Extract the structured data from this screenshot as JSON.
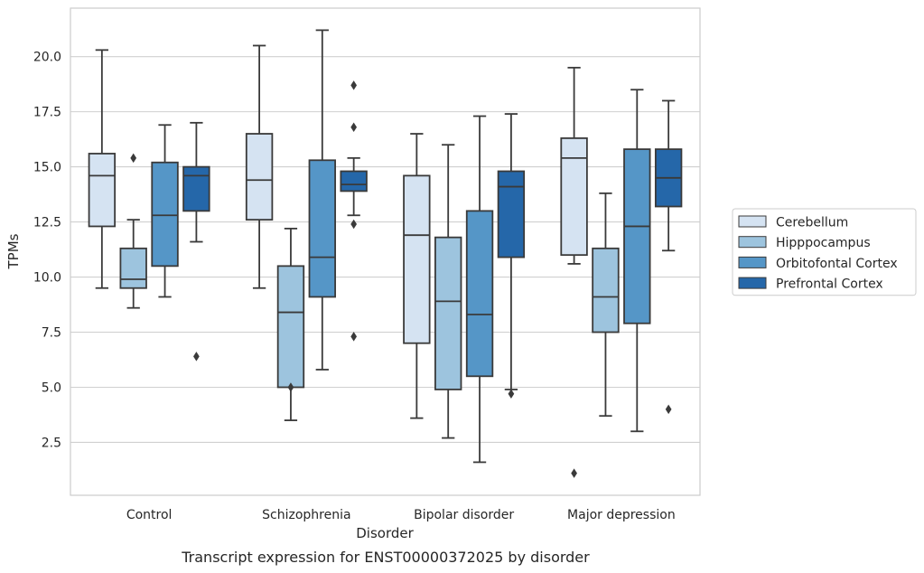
{
  "chart_data": {
    "type": "box",
    "title": "",
    "caption": "Transcript expression for ENST00000372025 by disorder",
    "xlabel": "Disorder",
    "ylabel": "TPMs",
    "ylim": [
      0.1,
      22.2
    ],
    "yticks": [
      2.5,
      5.0,
      7.5,
      10.0,
      12.5,
      15.0,
      17.5,
      20.0
    ],
    "ytick_labels": [
      "2.5",
      "5.0",
      "7.5",
      "10.0",
      "12.5",
      "15.0",
      "17.5",
      "20.0"
    ],
    "grid": true,
    "legend_position": "right",
    "categories": [
      "Control",
      "Schizophrenia",
      "Bipolar disorder",
      "Major depression"
    ],
    "series": [
      {
        "name": "Cerebellum",
        "color": "#d5e3f2",
        "boxes": [
          {
            "whislo": 9.5,
            "q1": 12.3,
            "med": 14.6,
            "q3": 15.6,
            "whishi": 20.3,
            "fliers": []
          },
          {
            "whislo": 9.5,
            "q1": 12.6,
            "med": 14.4,
            "q3": 16.5,
            "whishi": 20.5,
            "fliers": []
          },
          {
            "whislo": 3.6,
            "q1": 7.0,
            "med": 11.9,
            "q3": 14.6,
            "whishi": 16.5,
            "fliers": []
          },
          {
            "whislo": 10.6,
            "q1": 11.0,
            "med": 15.4,
            "q3": 16.3,
            "whishi": 19.5,
            "fliers": [
              1.1
            ]
          }
        ]
      },
      {
        "name": "Hipppocampus",
        "color": "#9dc4de",
        "boxes": [
          {
            "whislo": 8.6,
            "q1": 9.5,
            "med": 9.9,
            "q3": 11.3,
            "whishi": 12.6,
            "fliers": [
              15.4
            ]
          },
          {
            "whislo": 3.5,
            "q1": 5.0,
            "med": 8.4,
            "q3": 10.5,
            "whishi": 12.2,
            "fliers": [
              5.0
            ]
          },
          {
            "whislo": 2.7,
            "q1": 4.9,
            "med": 8.9,
            "q3": 11.8,
            "whishi": 16.0,
            "fliers": []
          },
          {
            "whislo": 3.7,
            "q1": 7.5,
            "med": 9.1,
            "q3": 11.3,
            "whishi": 13.8,
            "fliers": []
          }
        ]
      },
      {
        "name": "Orbitofontal Cortex",
        "color": "#5596c7",
        "boxes": [
          {
            "whislo": 9.1,
            "q1": 10.5,
            "med": 12.8,
            "q3": 15.2,
            "whishi": 16.9,
            "fliers": []
          },
          {
            "whislo": 5.8,
            "q1": 9.1,
            "med": 10.9,
            "q3": 15.3,
            "whishi": 21.2,
            "fliers": []
          },
          {
            "whislo": 1.6,
            "q1": 5.5,
            "med": 8.3,
            "q3": 13.0,
            "whishi": 17.3,
            "fliers": []
          },
          {
            "whislo": 3.0,
            "q1": 7.9,
            "med": 12.3,
            "q3": 15.8,
            "whishi": 18.5,
            "fliers": []
          }
        ]
      },
      {
        "name": "Prefrontal Cortex",
        "color": "#2567a9",
        "boxes": [
          {
            "whislo": 11.6,
            "q1": 13.0,
            "med": 14.6,
            "q3": 15.0,
            "whishi": 17.0,
            "fliers": [
              6.4
            ]
          },
          {
            "whislo": 12.8,
            "q1": 13.9,
            "med": 14.2,
            "q3": 14.8,
            "whishi": 15.4,
            "fliers": [
              18.7,
              16.8,
              12.4,
              7.3
            ]
          },
          {
            "whislo": 4.9,
            "q1": 10.9,
            "med": 14.1,
            "q3": 14.8,
            "whishi": 17.4,
            "fliers": [
              4.7
            ]
          },
          {
            "whislo": 11.2,
            "q1": 13.2,
            "med": 14.5,
            "q3": 15.8,
            "whishi": 18.0,
            "fliers": [
              4.0
            ]
          }
        ]
      }
    ]
  }
}
